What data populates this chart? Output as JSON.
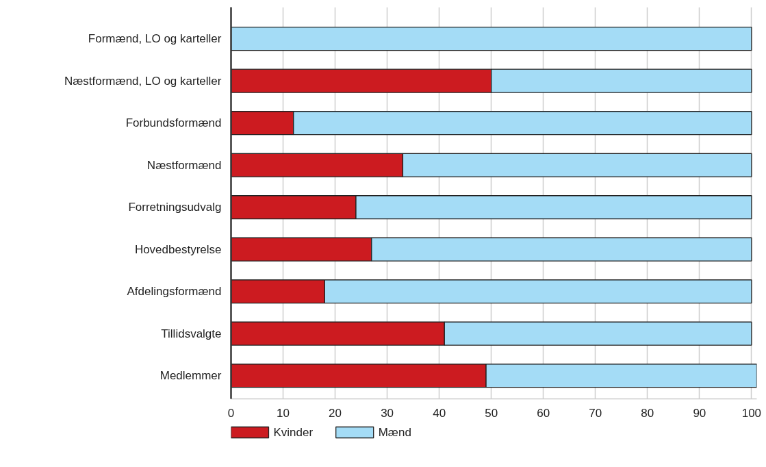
{
  "chart_data": {
    "type": "bar",
    "orientation": "horizontal",
    "stacked": true,
    "categories": [
      "Formænd, LO og karteller",
      "Næstformænd, LO og karteller",
      "Forbundsformænd",
      "Næstformænd",
      "Forretningsudvalg",
      "Hovedbestyrelse",
      "Afdelingsformænd",
      "Tillidsvalgte",
      "Medlemmer"
    ],
    "series": [
      {
        "name": "Kvinder",
        "color": "#cc1b20",
        "values": [
          0,
          50,
          12,
          33,
          24,
          27,
          18,
          41,
          49
        ]
      },
      {
        "name": "Mænd",
        "color": "#a4dcf6",
        "values": [
          100,
          50,
          88,
          67,
          76,
          73,
          82,
          59,
          52
        ]
      }
    ],
    "xlim": [
      0,
      101
    ],
    "xticks": [
      0,
      10,
      20,
      30,
      40,
      50,
      60,
      70,
      80,
      90,
      100
    ],
    "grid": "x",
    "legend": "bottom"
  }
}
